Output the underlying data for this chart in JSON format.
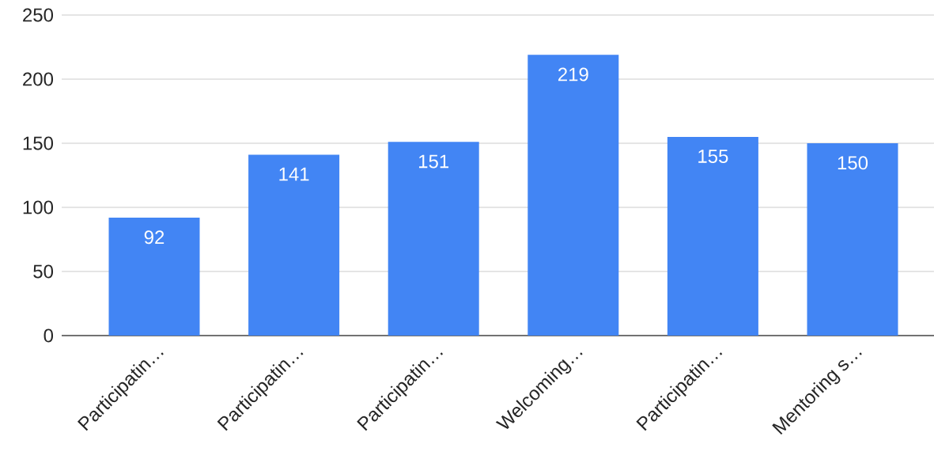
{
  "chart_data": {
    "type": "bar",
    "categories": [
      "Participatin…",
      "Participatin…",
      "Participatin…",
      "Welcoming…",
      "Participatin…",
      "Mentoring s…"
    ],
    "values": [
      92,
      141,
      151,
      219,
      155,
      150
    ],
    "color": "#4285f4",
    "ylim": [
      0,
      250
    ],
    "yticks": [
      0,
      50,
      100,
      150,
      200,
      250
    ],
    "grid": "y",
    "data_labels": true
  }
}
